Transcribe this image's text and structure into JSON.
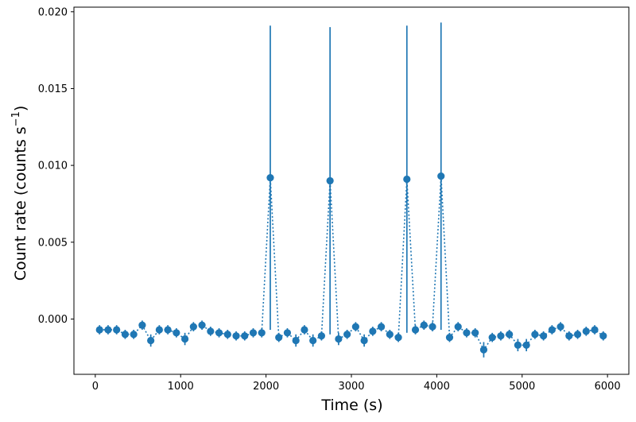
{
  "chart_data": {
    "type": "scatter",
    "xlabel": "Time (s)",
    "ylabel": "Count rate (counts s",
    "ylabel_sup": "−1",
    "ylabel_close": ")",
    "xlim": [
      -250,
      6250
    ],
    "ylim": [
      -0.0036,
      0.0203
    ],
    "xticks": [
      0,
      1000,
      2000,
      3000,
      4000,
      5000,
      6000
    ],
    "xtick_labels": [
      "0",
      "1000",
      "2000",
      "3000",
      "4000",
      "5000",
      "6000"
    ],
    "yticks": [
      0.0,
      0.005,
      0.01,
      0.015,
      0.02
    ],
    "ytick_labels": [
      "0.000",
      "0.005",
      "0.010",
      "0.015",
      "0.020"
    ],
    "grid": false,
    "marker_color": "#1f77b4",
    "line_style": "dotted",
    "series": [
      {
        "x": [
          50,
          150,
          250,
          350,
          450,
          550,
          650,
          750,
          850,
          950,
          1050,
          1150,
          1250,
          1350,
          1450,
          1550,
          1650,
          1750,
          1850,
          1950,
          2050,
          2150,
          2250,
          2350,
          2450,
          2550,
          2650,
          2750,
          2850,
          2950,
          3050,
          3150,
          3250,
          3350,
          3450,
          3550,
          3650,
          3750,
          3850,
          3950,
          4050,
          4150,
          4250,
          4350,
          4450,
          4550,
          4650,
          4750,
          4850,
          4950,
          5050,
          5150,
          5250,
          5350,
          5450,
          5550,
          5650,
          5750,
          5850,
          5950
        ],
        "y": [
          -0.0007,
          -0.0007,
          -0.0007,
          -0.001,
          -0.001,
          -0.0004,
          -0.0014,
          -0.0007,
          -0.0007,
          -0.0009,
          -0.0013,
          -0.0005,
          -0.0004,
          -0.0008,
          -0.0009,
          -0.001,
          -0.0011,
          -0.0011,
          -0.0009,
          -0.0009,
          0.0092,
          -0.0012,
          -0.0009,
          -0.0014,
          -0.0007,
          -0.0014,
          -0.0011,
          0.009,
          -0.0013,
          -0.001,
          -0.0005,
          -0.0014,
          -0.0008,
          -0.0005,
          -0.001,
          -0.0012,
          0.0091,
          -0.0007,
          -0.0004,
          -0.0005,
          0.0093,
          -0.0012,
          -0.0005,
          -0.0009,
          -0.0009,
          -0.002,
          -0.0012,
          -0.0011,
          -0.001,
          -0.0017,
          -0.0017,
          -0.001,
          -0.0011,
          -0.0007,
          -0.0005,
          -0.0011,
          -0.001,
          -0.0008,
          -0.0007,
          -0.0011
        ],
        "yerr": [
          0.0003,
          0.0003,
          0.0003,
          0.0003,
          0.0003,
          0.0003,
          0.0004,
          0.0003,
          0.0003,
          0.0003,
          0.0004,
          0.0003,
          0.0003,
          0.0003,
          0.0003,
          0.0003,
          0.0003,
          0.0003,
          0.0003,
          0.0003,
          0.0099,
          0.0003,
          0.0003,
          0.0004,
          0.0003,
          0.0004,
          0.0003,
          0.01,
          0.0004,
          0.0003,
          0.0003,
          0.0004,
          0.0003,
          0.0003,
          0.0003,
          0.0003,
          0.01,
          0.0003,
          0.0003,
          0.0003,
          0.01,
          0.0003,
          0.0003,
          0.0003,
          0.0003,
          0.0005,
          0.0003,
          0.0003,
          0.0003,
          0.0004,
          0.0004,
          0.0003,
          0.0003,
          0.0003,
          0.0003,
          0.0003,
          0.0003,
          0.0003,
          0.0003,
          0.0003
        ]
      }
    ]
  }
}
